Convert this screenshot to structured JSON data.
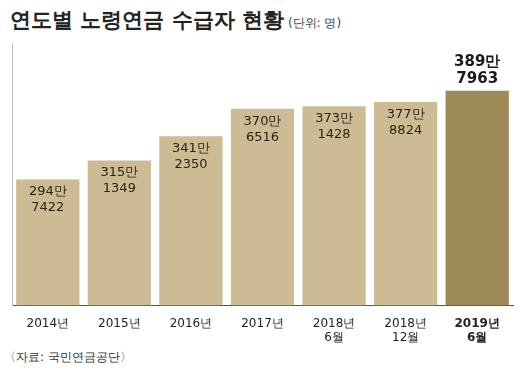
{
  "chart_data": {
    "type": "bar",
    "title": "연도별 노령연금 수급자 현황",
    "subtitle": "(단위: 명)",
    "source": "〈자료: 국민연금공단〉",
    "categories": [
      "2014년",
      "2015년",
      "2016년",
      "2017년",
      "2018년 6월",
      "2018년 12월",
      "2019년 6월"
    ],
    "values": [
      2947422,
      3151349,
      3412350,
      3706516,
      3731428,
      3778824,
      3897963
    ],
    "value_labels": [
      "294만 7422",
      "315만 1349",
      "341만 2350",
      "370만 6516",
      "373만 1428",
      "377만 8824",
      "389만 7963"
    ],
    "colors": [
      "#cdbb93",
      "#cdbb93",
      "#cdbb93",
      "#cdbb93",
      "#cdbb93",
      "#cdbb93",
      "#9d8a57"
    ],
    "ylim": [
      1600000,
      4400000
    ],
    "grid": false,
    "data_labels": true,
    "tick_labels": "x"
  }
}
